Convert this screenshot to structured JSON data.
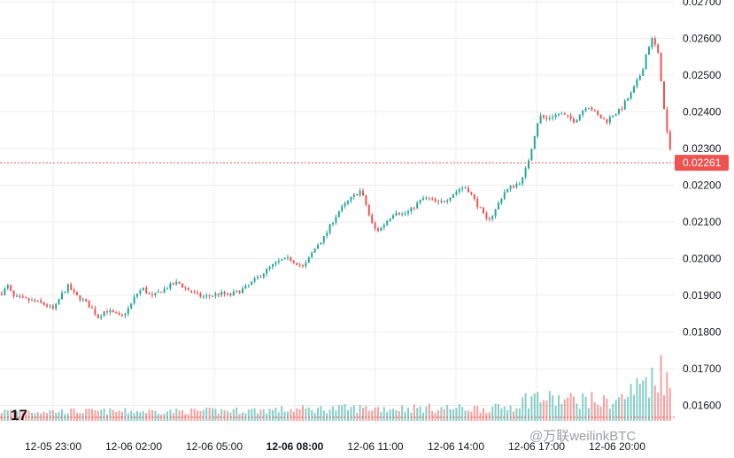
{
  "chart_data": {
    "type": "candlestick",
    "x_tick_labels": [
      "12-05 23:00",
      "12-06 02:00",
      "12-06 05:00",
      "12-06 08:00",
      "12-06 11:00",
      "12-06 14:00",
      "12-06 17:00",
      "12-06 20:00"
    ],
    "x_bold_label": "12-06 08:00",
    "y_tick_labels": [
      "0.02700",
      "0.02600",
      "0.02500",
      "0.02400",
      "0.02300",
      "0.02200",
      "0.02100",
      "0.02000",
      "0.01900",
      "0.01800",
      "0.01700",
      "0.01600"
    ],
    "ylim": [
      0.0157,
      0.02725
    ],
    "grid": true,
    "last_price": 0.02261,
    "last_price_label": "0.02261",
    "colors": {
      "up": "#26a69a",
      "down": "#ef5350",
      "grid": "#eceef2",
      "price_line": "#ef5350"
    },
    "price_path": [
      [
        0,
        0.01905
      ],
      [
        8,
        0.01925
      ],
      [
        14,
        0.01895
      ],
      [
        24,
        0.0189
      ],
      [
        34,
        0.01885
      ],
      [
        44,
        0.0188
      ],
      [
        54,
        0.0187
      ],
      [
        60,
        0.0186
      ],
      [
        68,
        0.019
      ],
      [
        76,
        0.01925
      ],
      [
        84,
        0.019
      ],
      [
        94,
        0.01885
      ],
      [
        104,
        0.0186
      ],
      [
        110,
        0.0184
      ],
      [
        118,
        0.0186
      ],
      [
        128,
        0.0185
      ],
      [
        136,
        0.0184
      ],
      [
        146,
        0.0187
      ],
      [
        152,
        0.019
      ],
      [
        160,
        0.0192
      ],
      [
        170,
        0.01895
      ],
      [
        180,
        0.0191
      ],
      [
        190,
        0.01925
      ],
      [
        200,
        0.01935
      ],
      [
        208,
        0.0192
      ],
      [
        218,
        0.01905
      ],
      [
        228,
        0.01895
      ],
      [
        238,
        0.019
      ],
      [
        248,
        0.01905
      ],
      [
        258,
        0.019
      ],
      [
        268,
        0.0191
      ],
      [
        276,
        0.0192
      ],
      [
        286,
        0.0194
      ],
      [
        296,
        0.0196
      ],
      [
        306,
        0.0198
      ],
      [
        316,
        0.01995
      ],
      [
        326,
        0.02
      ],
      [
        336,
        0.01985
      ],
      [
        342,
        0.01975
      ],
      [
        350,
        0.0201
      ],
      [
        358,
        0.0204
      ],
      [
        366,
        0.0206
      ],
      [
        374,
        0.021
      ],
      [
        382,
        0.0213
      ],
      [
        390,
        0.0215
      ],
      [
        398,
        0.0217
      ],
      [
        406,
        0.02185
      ],
      [
        412,
        0.0215
      ],
      [
        418,
        0.021
      ],
      [
        424,
        0.02075
      ],
      [
        430,
        0.02085
      ],
      [
        438,
        0.0211
      ],
      [
        446,
        0.0213
      ],
      [
        454,
        0.0212
      ],
      [
        462,
        0.0213
      ],
      [
        470,
        0.0215
      ],
      [
        478,
        0.02165
      ],
      [
        486,
        0.0216
      ],
      [
        494,
        0.0215
      ],
      [
        502,
        0.0216
      ],
      [
        510,
        0.02175
      ],
      [
        518,
        0.0219
      ],
      [
        526,
        0.02195
      ],
      [
        532,
        0.0217
      ],
      [
        540,
        0.0214
      ],
      [
        548,
        0.02105
      ],
      [
        556,
        0.0212
      ],
      [
        562,
        0.0215
      ],
      [
        568,
        0.0218
      ],
      [
        576,
        0.02195
      ],
      [
        584,
        0.02205
      ],
      [
        590,
        0.0222
      ],
      [
        596,
        0.0227
      ],
      [
        602,
        0.0233
      ],
      [
        608,
        0.0239
      ],
      [
        616,
        0.0238
      ],
      [
        624,
        0.0239
      ],
      [
        632,
        0.02395
      ],
      [
        640,
        0.02385
      ],
      [
        648,
        0.02375
      ],
      [
        656,
        0.024
      ],
      [
        662,
        0.0242
      ],
      [
        668,
        0.02405
      ],
      [
        676,
        0.02385
      ],
      [
        684,
        0.02375
      ],
      [
        692,
        0.02395
      ],
      [
        700,
        0.02405
      ],
      [
        706,
        0.0243
      ],
      [
        712,
        0.0245
      ],
      [
        718,
        0.0248
      ],
      [
        724,
        0.0251
      ],
      [
        730,
        0.0257
      ],
      [
        736,
        0.026
      ],
      [
        742,
        0.0256
      ],
      [
        746,
        0.0248
      ],
      [
        750,
        0.0238
      ],
      [
        754,
        0.0232
      ],
      [
        758,
        0.02261
      ]
    ],
    "volume_path": [
      [
        0,
        0.1
      ],
      [
        100,
        0.1
      ],
      [
        200,
        0.1
      ],
      [
        300,
        0.12
      ],
      [
        400,
        0.15
      ],
      [
        500,
        0.15
      ],
      [
        560,
        0.15
      ],
      [
        580,
        0.2
      ],
      [
        600,
        0.35
      ],
      [
        620,
        0.3
      ],
      [
        640,
        0.28
      ],
      [
        660,
        0.3
      ],
      [
        680,
        0.25
      ],
      [
        700,
        0.3
      ],
      [
        720,
        0.5
      ],
      [
        730,
        0.7
      ],
      [
        738,
        0.55
      ],
      [
        745,
        1.0
      ],
      [
        750,
        0.65
      ],
      [
        758,
        0.35
      ]
    ]
  },
  "watermark": {
    "logo_text": "17",
    "credit": "@万联weilinkBTC"
  },
  "colors": {
    "text": "#131722",
    "background": "#ffffff"
  }
}
